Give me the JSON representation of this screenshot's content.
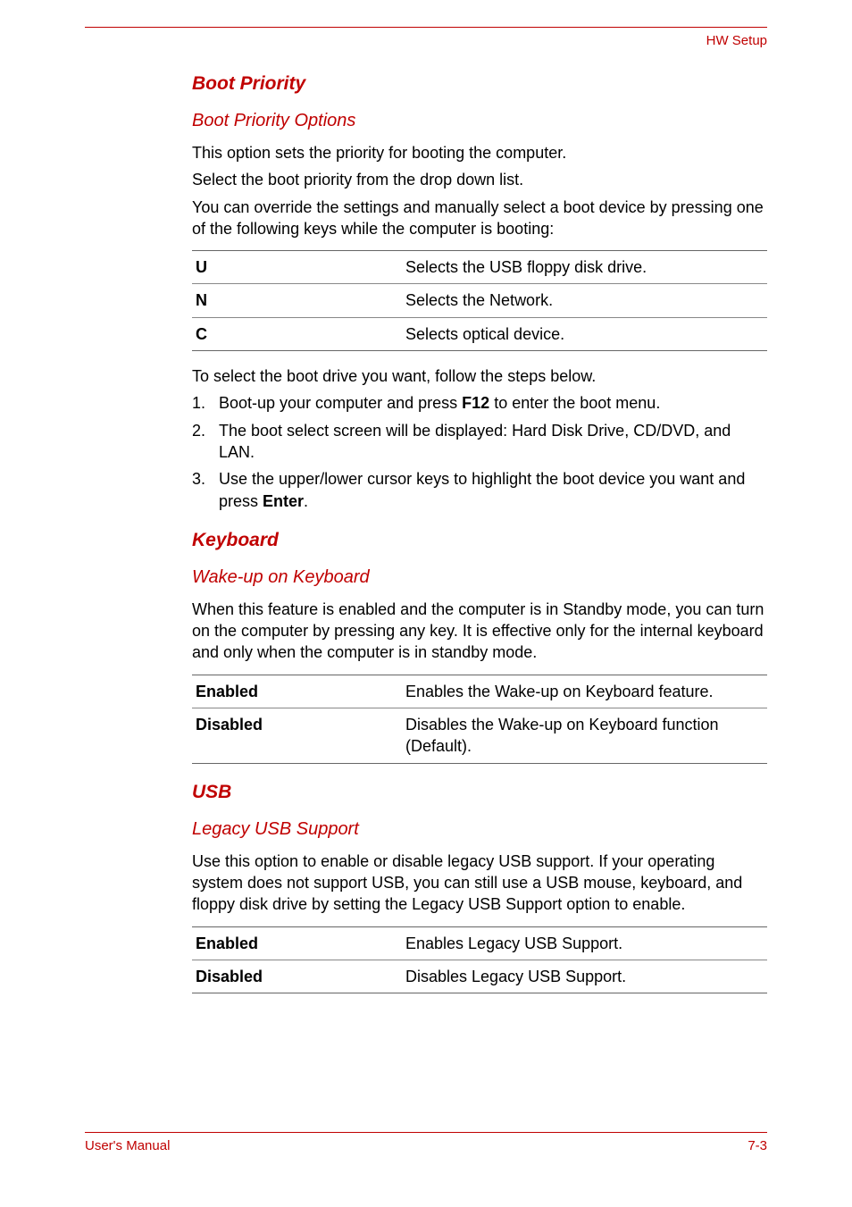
{
  "header": {
    "right": "HW Setup",
    "line_color": "#c00000"
  },
  "sections": {
    "boot_priority": {
      "title": "Boot Priority",
      "options": {
        "title": "Boot Priority Options",
        "p1": "This option sets the priority for booting the computer.",
        "p2": "Select the boot priority from the drop down list.",
        "p3": "You can override the settings and manually select a boot device by pressing one of the following keys while the computer is booting:",
        "keys": [
          {
            "k": "U",
            "v": "Selects the USB floppy disk drive."
          },
          {
            "k": "N",
            "v": "Selects the Network."
          },
          {
            "k": "C",
            "v": "Selects optical device."
          }
        ],
        "p4": "To select the boot drive you want, follow the steps below.",
        "steps": {
          "s1_a": "Boot-up your computer and press ",
          "s1_b": "F12",
          "s1_c": " to enter the boot menu.",
          "s2": "The boot select screen will be displayed: Hard Disk Drive, CD/DVD, and LAN.",
          "s3_a": "Use the upper/lower cursor keys to highlight the boot device you want and press ",
          "s3_b": "Enter",
          "s3_c": "."
        }
      }
    },
    "keyboard": {
      "title": "Keyboard",
      "wake": {
        "title": "Wake-up on Keyboard",
        "p1": "When this feature is enabled and the computer is in Standby mode, you can turn on the computer by pressing any key. It is effective only for the internal keyboard and only when the computer is in standby mode.",
        "rows": [
          {
            "k": "Enabled",
            "v": "Enables the Wake-up on Keyboard feature."
          },
          {
            "k": "Disabled",
            "v": "Disables the Wake-up on Keyboard function (Default)."
          }
        ]
      }
    },
    "usb": {
      "title": "USB",
      "legacy": {
        "title": "Legacy USB Support",
        "p1": "Use this option to enable or disable legacy USB support. If your operating system does not support USB, you can still use a USB mouse, keyboard, and floppy disk drive by setting the Legacy USB Support option to enable.",
        "rows": [
          {
            "k": "Enabled",
            "v": "Enables Legacy USB Support."
          },
          {
            "k": "Disabled",
            "v": "Disables Legacy USB Support."
          }
        ]
      }
    }
  },
  "footer": {
    "left": "User's Manual",
    "right": "7-3",
    "line_color": "#c00000"
  },
  "colors": {
    "accent": "#c00000",
    "text": "#000000",
    "border": "#888888"
  }
}
